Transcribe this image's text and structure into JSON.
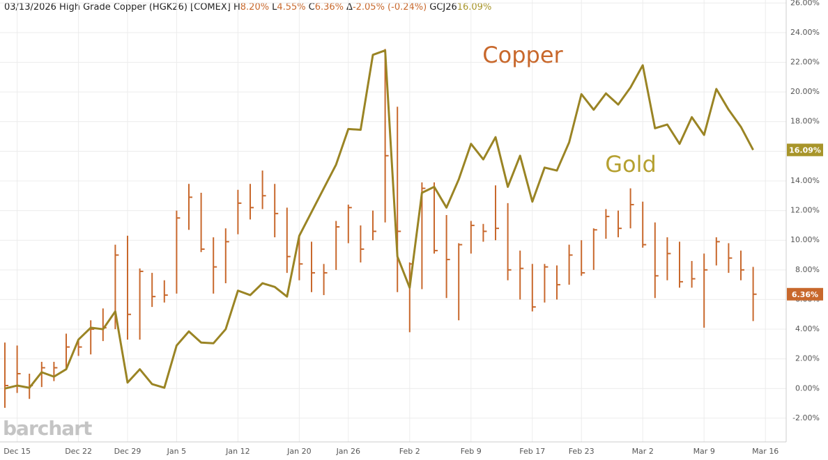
{
  "chart_data": {
    "type": "hlc",
    "header": {
      "text": "03/13/2026 High Grade Copper (HGK26) [COMEX]",
      "stats": [
        {
          "key": "H",
          "value": "8.20%"
        },
        {
          "key": "L",
          "value": "4.55%"
        },
        {
          "key": "C",
          "value": "6.36%"
        },
        {
          "key": "Δ",
          "value": "-2.05% (-0.24%)"
        },
        {
          "key": "GCJ26",
          "value": "16.09%"
        }
      ]
    },
    "watermark": "barchart",
    "categories": [
      null,
      "Dec 15",
      null,
      null,
      null,
      null,
      "Dec 22",
      null,
      null,
      null,
      "Dec 29",
      null,
      null,
      null,
      "Jan 5",
      null,
      null,
      null,
      null,
      "Jan 12",
      null,
      null,
      null,
      null,
      "Jan 20",
      null,
      null,
      null,
      "Jan 26",
      null,
      null,
      null,
      null,
      "Feb 2",
      null,
      null,
      null,
      null,
      "Feb 9",
      null,
      null,
      null,
      null,
      "Feb 17",
      null,
      null,
      null,
      "Feb 23",
      null,
      null,
      null,
      null,
      "Mar 2",
      null,
      null,
      null,
      null,
      "Mar 9",
      null,
      null,
      null,
      null,
      "Mar 16"
    ],
    "ylim": [
      -3.6,
      26.2
    ],
    "yticks": [
      {
        "value": -2,
        "label": "-2.00%"
      },
      {
        "value": 0,
        "label": "0.00%"
      },
      {
        "value": 2,
        "label": "2.00%"
      },
      {
        "value": 4,
        "label": "4.00%"
      },
      {
        "value": 6,
        "label": "6.00%"
      },
      {
        "value": 8,
        "label": "8.00%"
      },
      {
        "value": 10,
        "label": "10.00%"
      },
      {
        "value": 12,
        "label": "12.00%"
      },
      {
        "value": 14,
        "label": "14.00%"
      },
      {
        "value": 16,
        "label": "16.00%"
      },
      {
        "value": 18,
        "label": "18.00%"
      },
      {
        "value": 20,
        "label": "20.00%"
      },
      {
        "value": 22,
        "label": "22.00%"
      },
      {
        "value": 24,
        "label": "24.00%"
      },
      {
        "value": 26,
        "label": "26.00%"
      }
    ],
    "grid": true,
    "series": [
      {
        "name": "Copper",
        "type": "hlc",
        "color": "#c8682c",
        "last_label": "6.36%",
        "high": [
          3.1,
          2.9,
          1.0,
          1.8,
          1.8,
          3.7,
          3.3,
          4.6,
          5.4,
          9.7,
          10.3,
          8.1,
          7.8,
          7.3,
          12.0,
          13.8,
          13.2,
          10.2,
          10.8,
          13.4,
          13.8,
          14.7,
          13.8,
          12.2,
          10.2,
          9.9,
          8.4,
          11.3,
          12.4,
          11.0,
          12.0,
          22.9,
          19.0,
          8.5,
          13.9,
          13.9,
          11.7,
          9.8,
          11.3,
          11.1,
          13.7,
          12.5,
          9.3,
          8.4,
          8.4,
          8.3,
          9.7,
          10.0,
          10.8,
          12.1,
          12.0,
          13.5,
          12.6,
          11.2,
          10.2,
          9.9,
          8.6,
          9.1,
          10.2,
          9.8,
          9.3,
          8.2,
          null
        ],
        "low": [
          -1.3,
          -0.3,
          -0.7,
          0.1,
          0.5,
          1.3,
          2.2,
          2.3,
          3.2,
          4.0,
          3.3,
          3.3,
          5.5,
          5.8,
          6.4,
          10.7,
          9.2,
          6.4,
          7.1,
          10.4,
          11.4,
          12.1,
          10.2,
          7.8,
          7.3,
          6.5,
          6.3,
          8.0,
          9.8,
          8.5,
          10.0,
          11.2,
          6.5,
          3.8,
          6.7,
          9.1,
          6.1,
          4.6,
          9.1,
          9.9,
          10.0,
          7.3,
          6.0,
          5.2,
          5.8,
          6.0,
          7.0,
          7.6,
          8.0,
          10.1,
          10.2,
          10.8,
          9.5,
          6.1,
          7.3,
          6.8,
          6.8,
          4.1,
          8.3,
          7.8,
          7.3,
          4.55,
          null
        ],
        "close": [
          0.2,
          1.0,
          0.2,
          1.4,
          1.4,
          2.8,
          2.8,
          4.0,
          4.1,
          9.0,
          5.0,
          7.9,
          6.2,
          6.3,
          11.5,
          12.9,
          9.4,
          8.2,
          9.9,
          12.5,
          12.2,
          13.0,
          11.8,
          8.9,
          8.4,
          7.8,
          7.8,
          10.9,
          12.2,
          9.4,
          10.6,
          15.7,
          10.6,
          8.4,
          13.5,
          9.3,
          8.7,
          9.7,
          11.0,
          10.6,
          10.8,
          8.0,
          8.1,
          5.5,
          8.2,
          7.0,
          9.0,
          7.8,
          10.7,
          11.6,
          10.8,
          12.4,
          9.7,
          7.6,
          9.1,
          7.2,
          7.4,
          8.0,
          9.9,
          8.8,
          8.0,
          6.36,
          null
        ]
      },
      {
        "name": "Gold",
        "type": "line",
        "color": "#9a8424",
        "last_label": "16.09%",
        "values": [
          0.0,
          0.2,
          0.05,
          1.1,
          0.8,
          1.3,
          3.3,
          4.1,
          4.0,
          5.2,
          0.4,
          1.3,
          0.3,
          0.05,
          2.9,
          3.85,
          3.1,
          3.05,
          4.0,
          6.6,
          6.3,
          7.1,
          6.85,
          6.2,
          10.3,
          11.9,
          13.5,
          15.1,
          17.5,
          17.45,
          22.5,
          22.8,
          8.9,
          6.8,
          13.2,
          13.6,
          12.2,
          14.1,
          16.5,
          15.45,
          16.95,
          13.6,
          15.7,
          12.6,
          14.9,
          14.7,
          16.6,
          19.85,
          18.8,
          19.9,
          19.15,
          20.3,
          21.8,
          17.55,
          17.8,
          16.5,
          18.3,
          17.1,
          20.2,
          18.8,
          17.65,
          16.09,
          null
        ]
      }
    ]
  }
}
